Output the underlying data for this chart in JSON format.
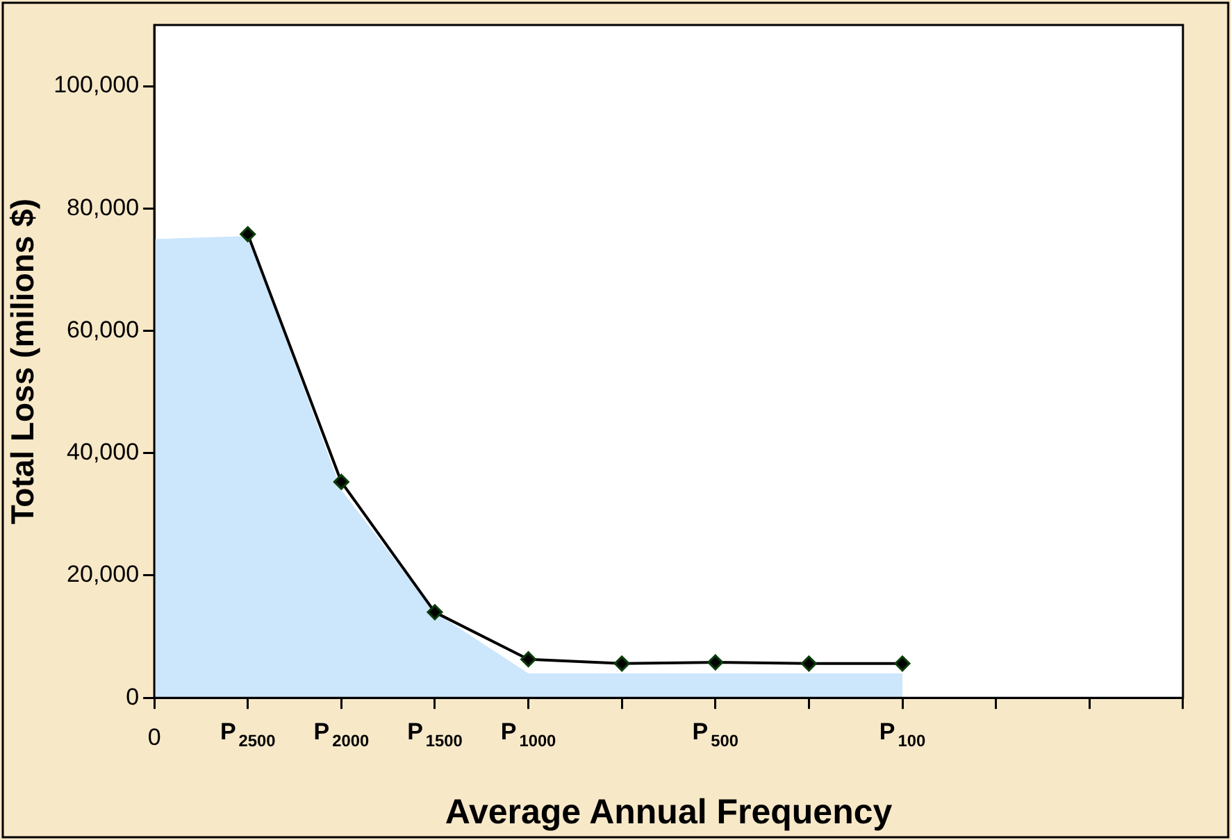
{
  "chart_data": {
    "type": "line",
    "xlabel": "Average Annual Frequency",
    "ylabel": "Total Loss (milions $)",
    "categories": [
      "0",
      "P$_{2500}$",
      "P$_{2000}$",
      "P$_{1500}$",
      "P$_{1000}$",
      null,
      "P$_{500}$",
      null,
      "P$_{100}$",
      null,
      null,
      null
    ],
    "ylim": [
      0,
      110000
    ],
    "yticks": [
      0,
      {
        "value": 20000,
        "label": "20,000"
      },
      {
        "value": 40000,
        "label": "40,000"
      },
      {
        "value": 60000,
        "label": "60,000"
      },
      {
        "value": 80000,
        "label": "80,000"
      },
      {
        "value": 100000,
        "label": "100,000"
      }
    ],
    "grid": false,
    "legend": false,
    "line_style": "solid",
    "series": [
      {
        "type": "area",
        "color": "#cce6fc",
        "values": [
          75000,
          75500,
          34000,
          14000,
          4000,
          4000,
          4000,
          4000,
          4000,
          null,
          null,
          null
        ]
      },
      {
        "color": "#000000",
        "marker": "diamond",
        "values": [
          null,
          75800,
          35300,
          14000,
          6300,
          5600,
          5800,
          5600,
          5600,
          null,
          null,
          null
        ]
      }
    ]
  }
}
